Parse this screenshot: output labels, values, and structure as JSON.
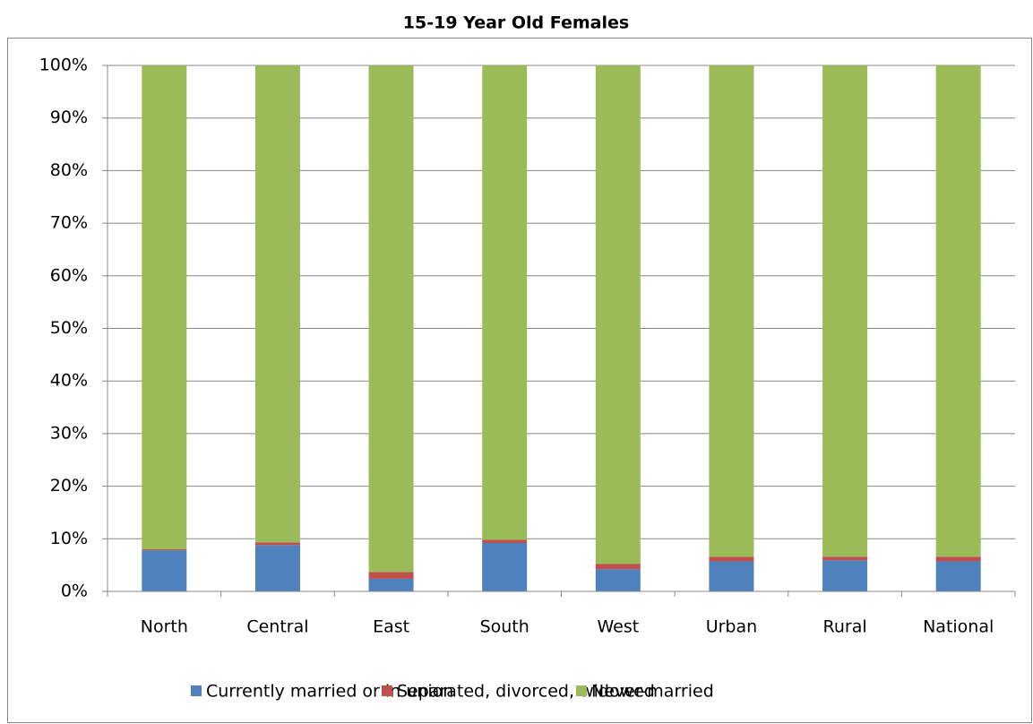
{
  "chart_data": {
    "type": "stacked_bar",
    "title": "15-19 Year Old Females",
    "categories": [
      "North",
      "Central",
      "East",
      "South",
      "West",
      "Urban",
      "Rural",
      "National"
    ],
    "series": [
      {
        "name": "Currently married or in union",
        "color": "#4f81bd",
        "values": [
          7.8,
          8.8,
          2.4,
          9.2,
          4.2,
          5.7,
          5.9,
          5.7
        ]
      },
      {
        "name": "Separated, divorced, widowed",
        "color": "#c0504d",
        "values": [
          0.2,
          0.5,
          1.3,
          0.6,
          1.0,
          0.9,
          0.7,
          0.9
        ]
      },
      {
        "name": "Never-married",
        "color": "#9bbb59",
        "values": [
          92.0,
          90.7,
          96.3,
          90.2,
          94.8,
          93.4,
          93.4,
          93.4
        ]
      }
    ],
    "ylim": [
      0,
      100
    ],
    "yticks": [
      {
        "value": 0,
        "label": "0%"
      },
      {
        "value": 10,
        "label": "10%"
      },
      {
        "value": 20,
        "label": "20%"
      },
      {
        "value": 30,
        "label": "30%"
      },
      {
        "value": 40,
        "label": "40%"
      },
      {
        "value": 50,
        "label": "50%"
      },
      {
        "value": 60,
        "label": "60%"
      },
      {
        "value": 70,
        "label": "70%"
      },
      {
        "value": 80,
        "label": "80%"
      },
      {
        "value": 90,
        "label": "90%"
      },
      {
        "value": 100,
        "label": "100%"
      }
    ],
    "grid": true,
    "legend": "bottom"
  }
}
